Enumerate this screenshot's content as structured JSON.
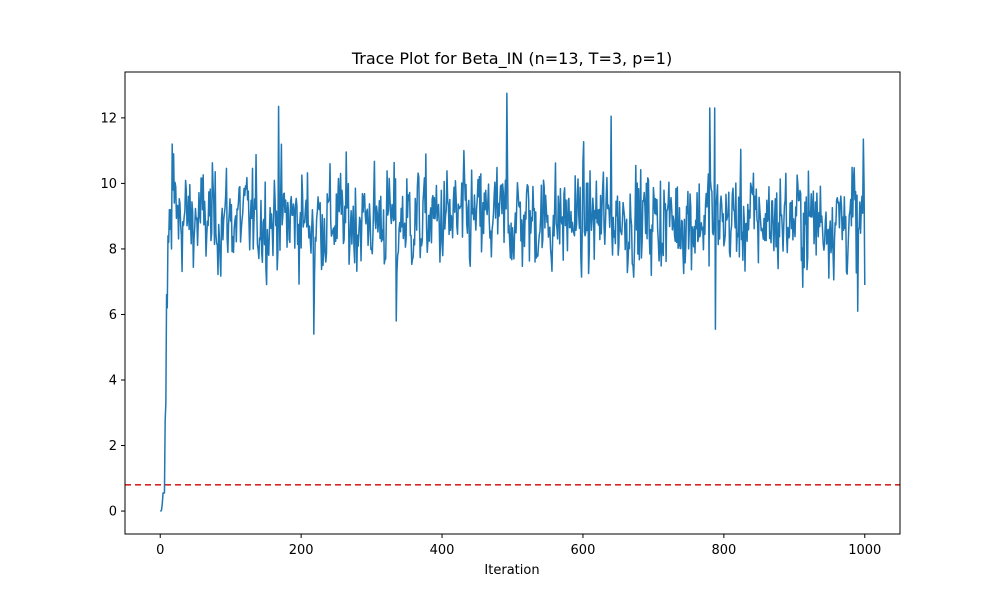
{
  "chart_data": {
    "type": "line",
    "title": "Trace Plot for Beta_IN (n=13, T=3, p=1)",
    "xlabel": "Iteration",
    "ylabel": "",
    "xlim": [
      -50,
      1050
    ],
    "ylim": [
      -0.7,
      13.4
    ],
    "x_ticks": [
      0,
      200,
      400,
      600,
      800,
      1000
    ],
    "y_ticks": [
      0,
      2,
      4,
      6,
      8,
      10,
      12
    ],
    "grid": false,
    "legend": "none",
    "series": [
      {
        "color": "#1f77b4",
        "x_start": 0,
        "x_step": 1,
        "burn_in_values": [
          0.0,
          0.0,
          0.05,
          0.25,
          0.55,
          0.55,
          0.55,
          2.75,
          3.3,
          6.6,
          6.2,
          8.4,
          8.2,
          9.2,
          8.6,
          9.2,
          8.0,
          11.2,
          9.8,
          10.9,
          9.4
        ],
        "chain_summary": {
          "n_iterations": 1000,
          "center": 8.9,
          "typical_low": 6.5,
          "typical_high": 11.0,
          "notable_points": [
            [
              218,
              5.4
            ],
            [
              335,
              5.8
            ],
            [
              168,
              12.35
            ],
            [
              492,
              12.75
            ],
            [
              640,
              12.05
            ],
            [
              787,
              12.3
            ],
            [
              788,
              5.55
            ],
            [
              780,
              12.3
            ],
            [
              990,
              6.1
            ],
            [
              998,
              11.35
            ],
            [
              1000,
              6.9
            ]
          ]
        }
      }
    ],
    "reference_lines": [
      {
        "orientation": "horizontal",
        "y": 0.8,
        "color": "#d62728",
        "style": "dashed"
      }
    ]
  }
}
